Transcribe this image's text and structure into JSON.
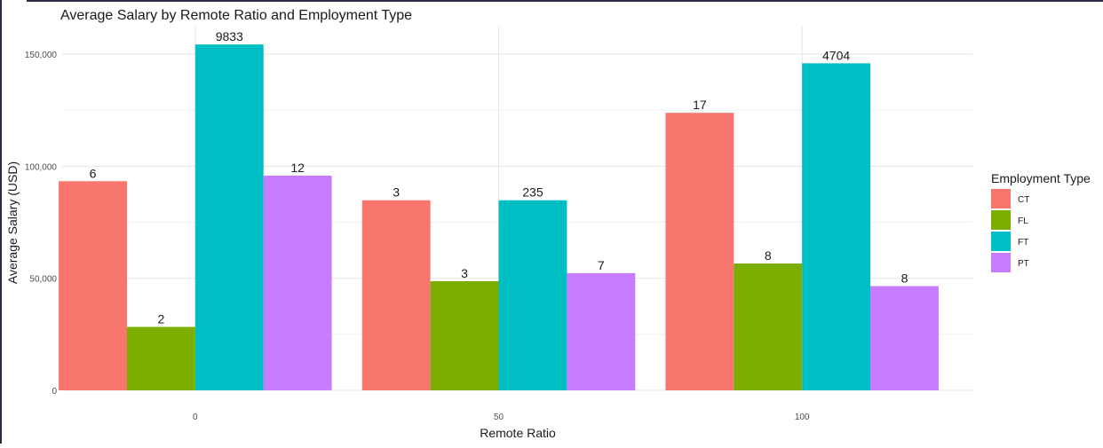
{
  "chart_data": {
    "type": "bar",
    "title": "Average Salary by Remote Ratio and Employment Type",
    "xlabel": "Remote Ratio",
    "ylabel": "Average Salary (USD)",
    "categories": [
      "0",
      "50",
      "100"
    ],
    "ylim": [
      0,
      160000
    ],
    "yticks": [
      0,
      50000,
      100000,
      150000
    ],
    "ytick_labels": [
      "0",
      "50,000",
      "100,000",
      "150,000"
    ],
    "grid": true,
    "legend": {
      "title": "Employment Type",
      "position": "right"
    },
    "series": [
      {
        "name": "CT",
        "color": "#F8766D",
        "values": [
          93300,
          84800,
          123800
        ],
        "labels": [
          "6",
          "3",
          "17"
        ]
      },
      {
        "name": "FL",
        "color": "#7CAE00",
        "values": [
          28300,
          48700,
          56600
        ],
        "labels": [
          "2",
          "3",
          "8"
        ]
      },
      {
        "name": "FT",
        "color": "#00BFC4",
        "values": [
          154300,
          84800,
          145900
        ],
        "labels": [
          "9833",
          "235",
          "4704"
        ]
      },
      {
        "name": "PT",
        "color": "#C77CFF",
        "values": [
          95800,
          52300,
          46500
        ],
        "labels": [
          "12",
          "7",
          "8"
        ]
      }
    ]
  }
}
